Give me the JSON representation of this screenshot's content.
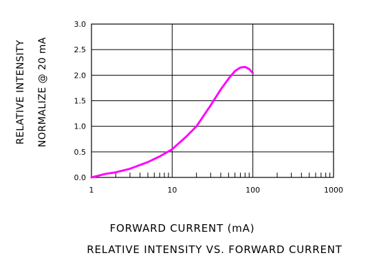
{
  "chart_data": {
    "type": "line",
    "title": "RELATIVE INTENSITY VS. FORWARD CURRENT",
    "xlabel": "FORWARD CURRENT (mA)",
    "ylabel_line1": "RELATIVE INTENSITY",
    "ylabel_line2": "NORMALIZE @ 20 mA",
    "x_scale": "log",
    "xlim": [
      1,
      1000
    ],
    "ylim": [
      0,
      3.0
    ],
    "x_ticks": [
      "1",
      "10",
      "100",
      "1000"
    ],
    "y_ticks": [
      "0.0",
      "0.5",
      "1.0",
      "1.5",
      "2.0",
      "2.5",
      "3.0"
    ],
    "grid": true,
    "series": [
      {
        "color": "#ff00ff",
        "x": [
          1,
          1.5,
          2,
          3,
          5,
          7,
          10,
          15,
          20,
          30,
          40,
          50,
          60,
          70,
          80,
          90,
          100
        ],
        "y": [
          0.0,
          0.07,
          0.1,
          0.17,
          0.3,
          0.41,
          0.55,
          0.8,
          1.0,
          1.41,
          1.72,
          1.93,
          2.08,
          2.15,
          2.16,
          2.12,
          2.04
        ]
      }
    ]
  }
}
